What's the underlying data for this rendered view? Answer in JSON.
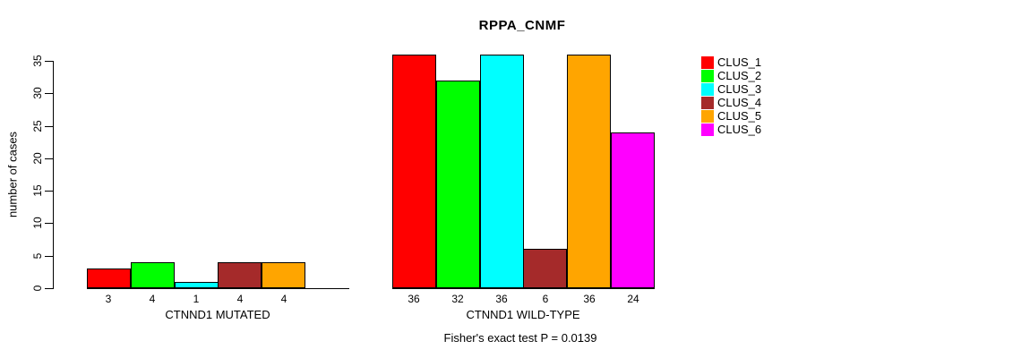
{
  "title": "RPPA_CNMF",
  "y_axis": {
    "label": "number of cases"
  },
  "footer": "Fisher's exact test P = 0.0139",
  "chart_data": {
    "type": "bar",
    "title": "RPPA_CNMF",
    "ylabel": "number of cases",
    "xlabel": "",
    "ylim": [
      0,
      35
    ],
    "yticks": [
      0,
      5,
      10,
      15,
      20,
      25,
      30,
      35
    ],
    "categories": [
      "CTNND1 MUTATED",
      "CTNND1 WILD-TYPE"
    ],
    "series": [
      {
        "name": "CLUS_1",
        "color": "#FF0000",
        "values": [
          3,
          36
        ]
      },
      {
        "name": "CLUS_2",
        "color": "#00FF00",
        "values": [
          4,
          32
        ]
      },
      {
        "name": "CLUS_3",
        "color": "#00FFFF",
        "values": [
          1,
          36
        ]
      },
      {
        "name": "CLUS_4",
        "color": "#A52A2A",
        "values": [
          4,
          6
        ]
      },
      {
        "name": "CLUS_5",
        "color": "#FFA500",
        "values": [
          4,
          36
        ]
      },
      {
        "name": "CLUS_6",
        "color": "#FF00FF",
        "values": [
          0,
          24
        ]
      }
    ],
    "bar_value_labels": true,
    "zero_value_bars_hidden": true,
    "grid": false,
    "legend_position": "right",
    "annotation": "Fisher's exact test P = 0.0139"
  }
}
